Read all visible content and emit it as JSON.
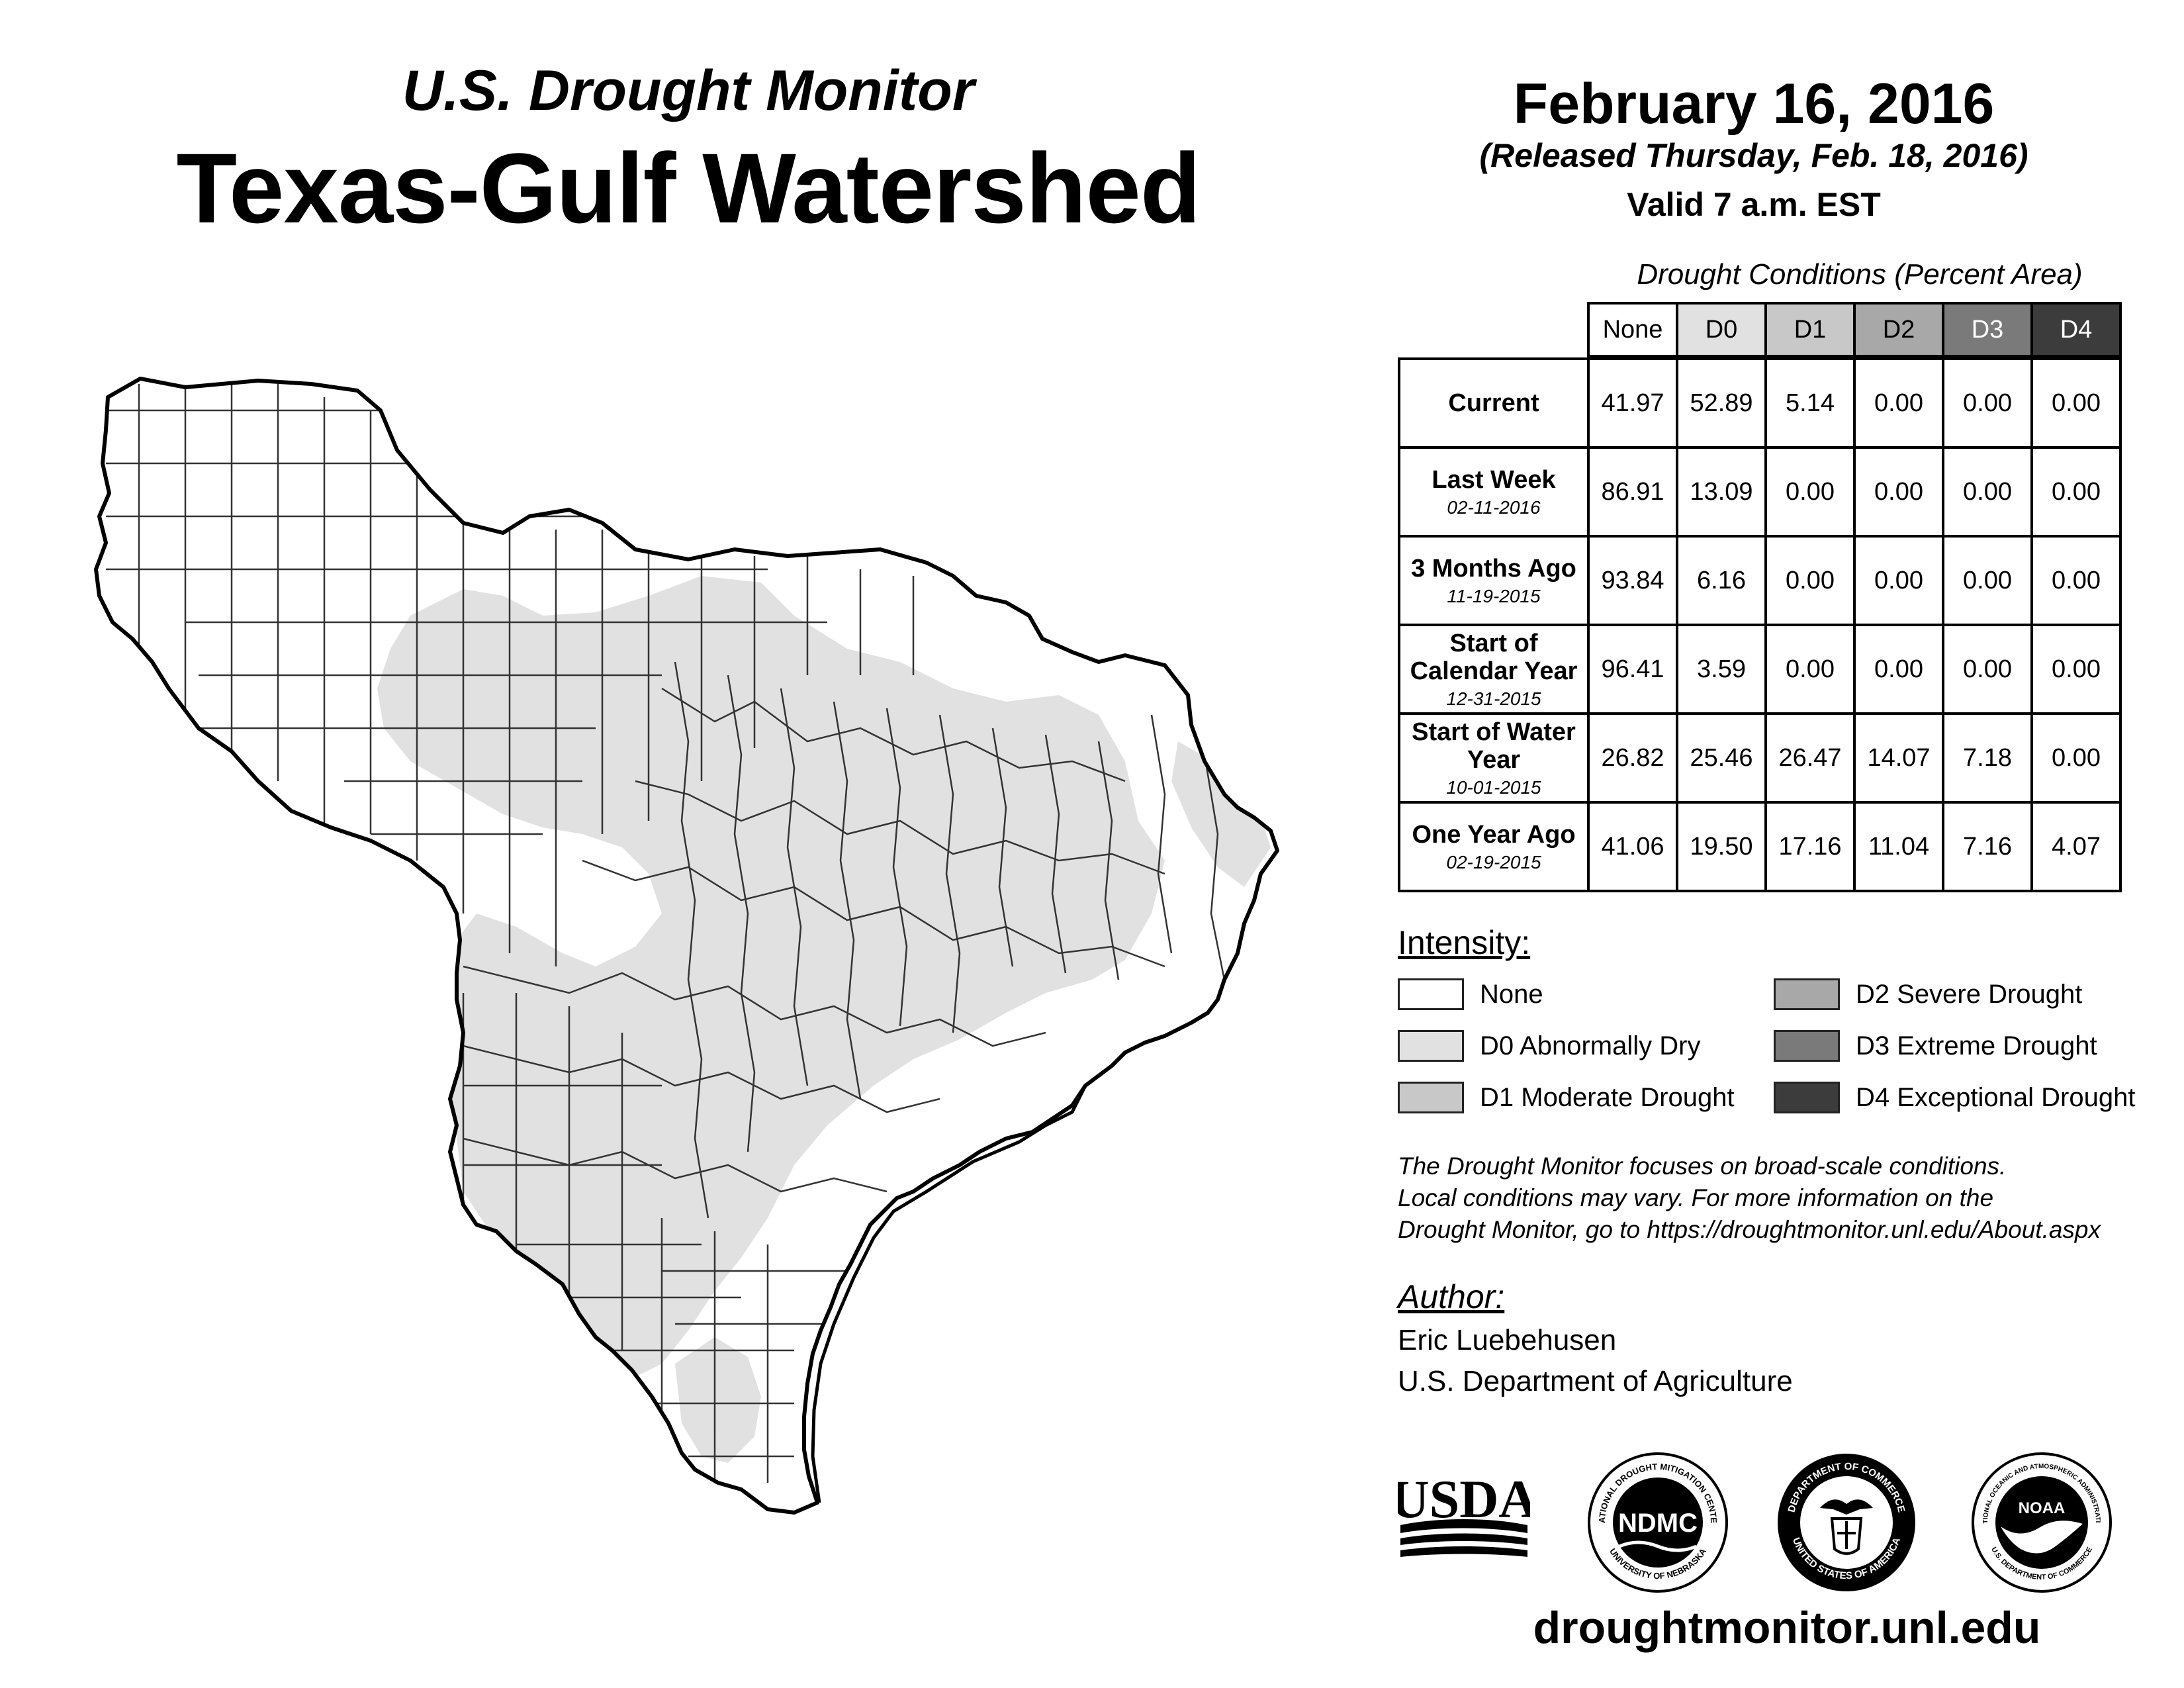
{
  "header": {
    "subtitle": "U.S. Drought Monitor",
    "title": "Texas-Gulf Watershed",
    "date": "February 16, 2016",
    "released": "(Released Thursday, Feb. 18, 2016)",
    "valid": "Valid 7 a.m. EST"
  },
  "table": {
    "caption": "Drought Conditions (Percent Area)",
    "columns": [
      "None",
      "D0",
      "D1",
      "D2",
      "D3",
      "D4"
    ],
    "rows": [
      {
        "label": "Current",
        "date": "",
        "values": [
          "41.97",
          "52.89",
          "5.14",
          "0.00",
          "0.00",
          "0.00"
        ]
      },
      {
        "label": "Last Week",
        "date": "02-11-2016",
        "values": [
          "86.91",
          "13.09",
          "0.00",
          "0.00",
          "0.00",
          "0.00"
        ]
      },
      {
        "label": "3 Months Ago",
        "date": "11-19-2015",
        "values": [
          "93.84",
          "6.16",
          "0.00",
          "0.00",
          "0.00",
          "0.00"
        ]
      },
      {
        "label": "Start of Calendar Year",
        "date": "12-31-2015",
        "values": [
          "96.41",
          "3.59",
          "0.00",
          "0.00",
          "0.00",
          "0.00"
        ]
      },
      {
        "label": "Start of Water Year",
        "date": "10-01-2015",
        "values": [
          "26.82",
          "25.46",
          "26.47",
          "14.07",
          "7.18",
          "0.00"
        ]
      },
      {
        "label": "One Year Ago",
        "date": "02-19-2015",
        "values": [
          "41.06",
          "19.50",
          "17.16",
          "11.04",
          "7.16",
          "4.07"
        ]
      }
    ]
  },
  "legend": {
    "title": "Intensity:",
    "items": [
      {
        "label": "None",
        "color": "#ffffff"
      },
      {
        "label": "D0 Abnormally Dry",
        "color": "#e1e1e1"
      },
      {
        "label": "D1 Moderate Drought",
        "color": "#c8c8c8"
      },
      {
        "label": "D2 Severe Drought",
        "color": "#a8a8a8"
      },
      {
        "label": "D3 Extreme Drought",
        "color": "#7a7a7a"
      },
      {
        "label": "D4 Exceptional Drought",
        "color": "#3c3c3c"
      }
    ]
  },
  "footnote": {
    "line1": "The Drought Monitor focuses on broad-scale conditions.",
    "line2": "Local conditions may vary. For more information on the",
    "line3": "Drought Monitor, go to https://droughtmonitor.unl.edu/About.aspx"
  },
  "author": {
    "title": "Author:",
    "name": "Eric Luebehusen",
    "org": "U.S. Department of Agriculture"
  },
  "logos": {
    "usda": "USDA",
    "ndmc": "NDMC",
    "ndmc_ring_top": "NATIONAL DROUGHT MITIGATION CENTER",
    "ndmc_ring_bottom": "UNIVERSITY OF NEBRASKA",
    "doc_ring_top": "DEPARTMENT OF COMMERCE",
    "doc_ring_bottom": "UNITED STATES OF AMERICA",
    "noaa": "NOAA",
    "noaa_ring_top": "NATIONAL OCEANIC AND ATMOSPHERIC ADMINISTRATION",
    "noaa_ring_bottom": "U.S. DEPARTMENT OF COMMERCE"
  },
  "website": "droughtmonitor.unl.edu",
  "map": {
    "fill_none": "#ffffff",
    "fill_d0": "#e1e1e1",
    "county_line": "#333333",
    "boundary": "#000000"
  }
}
